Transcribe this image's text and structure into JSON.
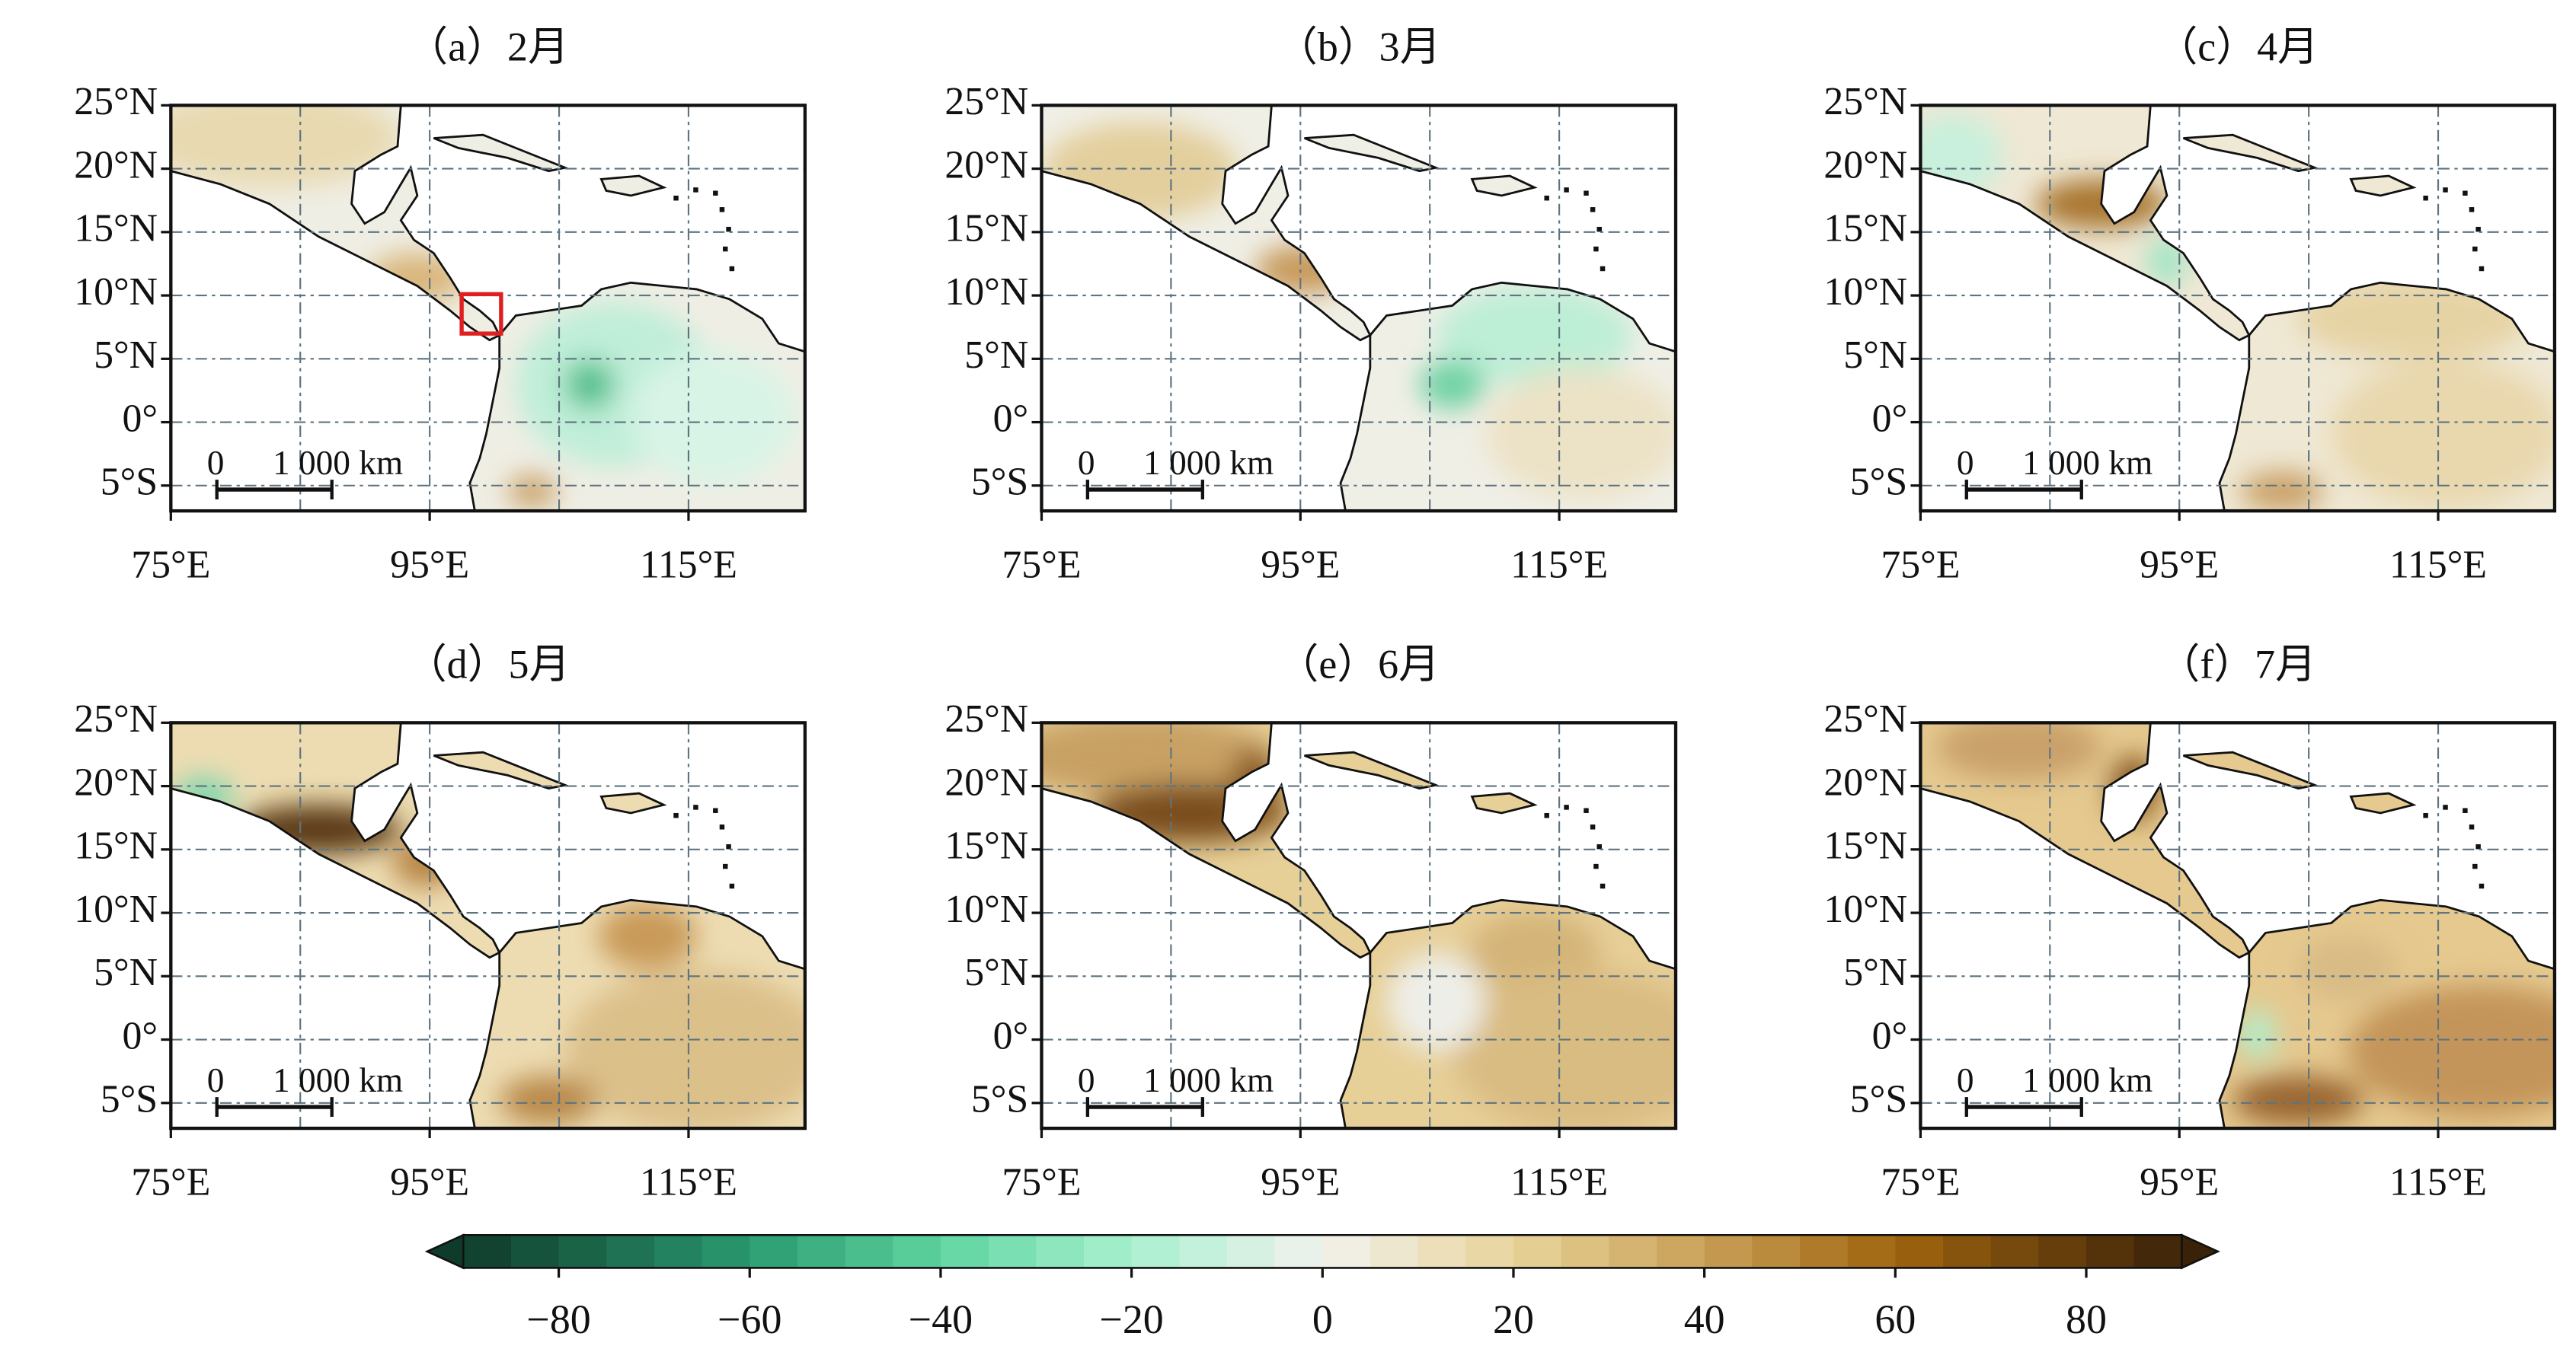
{
  "panels": [
    {
      "title": "（a）2月"
    },
    {
      "title": "（b）3月"
    },
    {
      "title": "（c）4月"
    },
    {
      "title": "（d）5月"
    },
    {
      "title": "（e）6月"
    },
    {
      "title": "（f）7月"
    }
  ],
  "map": {
    "xlim": [
      75,
      124
    ],
    "ylim": [
      -7,
      25
    ],
    "xticks": [
      {
        "value": 75,
        "label": "75°E"
      },
      {
        "value": 95,
        "label": "95°E"
      },
      {
        "value": 115,
        "label": "115°E"
      }
    ],
    "yticks": [
      {
        "value": 25,
        "label": "25°N"
      },
      {
        "value": 20,
        "label": "20°N"
      },
      {
        "value": 15,
        "label": "15°N"
      },
      {
        "value": 10,
        "label": "10°N"
      },
      {
        "value": 5,
        "label": "5°N"
      },
      {
        "value": 0,
        "label": "0°"
      },
      {
        "value": -5,
        "label": "5°S"
      }
    ],
    "xgrid": [
      75,
      85,
      95,
      105,
      115
    ],
    "grid": true,
    "scalebar": {
      "labels": [
        "0",
        "1 000 km"
      ]
    }
  },
  "colorbar": {
    "range": [
      -90,
      90
    ],
    "step": 5,
    "extend": "both",
    "stops": [
      {
        "value": -90,
        "color": "#0f3b2a"
      },
      {
        "value": -60,
        "color": "#2a9a70"
      },
      {
        "value": -40,
        "color": "#5fd4a0"
      },
      {
        "value": -20,
        "color": "#a8f0cf"
      },
      {
        "value": 0,
        "color": "#f2f2ee"
      },
      {
        "value": 20,
        "color": "#e8d49a"
      },
      {
        "value": 40,
        "color": "#c9a058"
      },
      {
        "value": 60,
        "color": "#a0650f"
      },
      {
        "value": 90,
        "color": "#3a2208"
      }
    ],
    "ticks": [
      {
        "value": -80,
        "label": "−80"
      },
      {
        "value": -60,
        "label": "−60"
      },
      {
        "value": -40,
        "label": "−40"
      },
      {
        "value": -20,
        "label": "−20"
      },
      0,
      20,
      40,
      60,
      80
    ]
  }
}
